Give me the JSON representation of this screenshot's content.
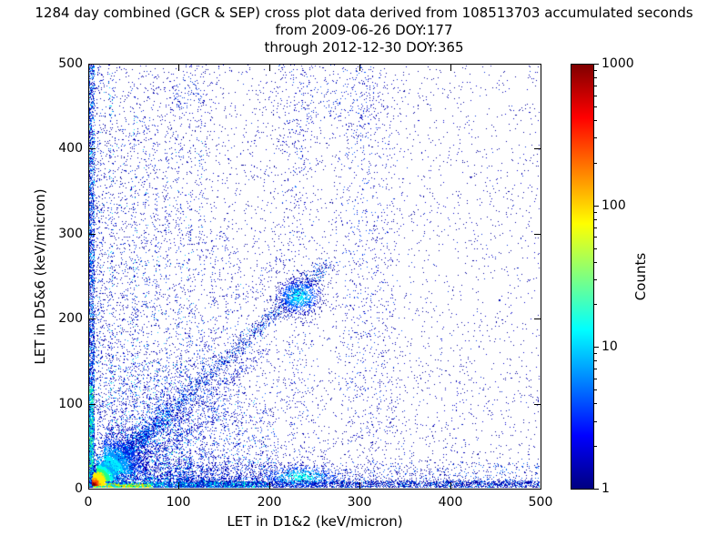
{
  "title": {
    "line1": "1284 day combined (GCR & SEP) cross plot data derived from 108513703 accumulated seconds",
    "line2": "from 2009-06-26 DOY:177",
    "line3": "through 2012-12-30 DOY:365"
  },
  "axes": {
    "x": {
      "label": "LET in D1&2 (keV/micron)",
      "min": 0,
      "max": 500,
      "ticks": [
        0,
        100,
        200,
        300,
        400,
        500
      ]
    },
    "y": {
      "label": "LET in D5&6 (keV/micron)",
      "min": 0,
      "max": 500,
      "ticks": [
        0,
        100,
        200,
        300,
        400,
        500
      ]
    }
  },
  "colorbar": {
    "label": "Counts",
    "scale": "log",
    "min": 1,
    "max": 1000,
    "ticks": [
      {
        "value": 1,
        "label": "1"
      },
      {
        "value": 10,
        "label": "10"
      },
      {
        "value": 100,
        "label": "100"
      },
      {
        "value": 1000,
        "label": "1000"
      }
    ],
    "colormap": "jet",
    "gradient_stops": [
      {
        "frac": 0.0,
        "color": "#000080"
      },
      {
        "frac": 0.125,
        "color": "#0000ff"
      },
      {
        "frac": 0.375,
        "color": "#00ffff"
      },
      {
        "frac": 0.625,
        "color": "#ffff00"
      },
      {
        "frac": 0.875,
        "color": "#ff0000"
      },
      {
        "frac": 1.0,
        "color": "#800000"
      }
    ]
  },
  "chart_data": {
    "type": "heatmap",
    "subtype": "2D histogram cross plot rendered as log-color density scatter",
    "title": "1284 day combined (GCR & SEP) cross plot data derived from 108513703 accumulated seconds from 2009-06-26 DOY:177 through 2012-12-30 DOY:365",
    "xlabel": "LET in D1&2 (keV/micron)",
    "ylabel": "LET in D5&6 (keV/micron)",
    "xlim": [
      0,
      500
    ],
    "ylim": [
      0,
      500
    ],
    "color_value": "Counts",
    "color_scale": "log",
    "color_range": [
      1,
      1000
    ],
    "grid": false,
    "legend": "colorbar right",
    "features": [
      "Intense hot spot (counts approaching 1000, red/orange/yellow) at the origin, below ~20 keV/micron in both detector pairs",
      "Dense correlated diagonal band y ~ x extending from the origin to about (260, 260)",
      "Secondary dense cluster centered near (230, 225) at the end of the diagonal band",
      "Dense low-LET band hugging the x-axis (y < ~10) across the full 0-500 range, warm-colored near the origin fading to blue",
      "Dense band hugging the y-axis (x < ~8) across the full 0-500 range",
      "Faint vertical striations at x ~ 25-170 and near x ~ 230, 300, 330 reaching toward the top of the plot",
      "Sparse single-count (dark blue) background scatter everywhere, density decreasing toward high LET in either detector"
    ],
    "density_regions": [
      {
        "type": "scatter",
        "xpow": 1.9,
        "ypow": 1.4,
        "n": 5200,
        "colors": [
          [
            "#000099",
            0.6
          ],
          [
            "#0000cc",
            0.3
          ],
          [
            "#0033dd",
            0.1
          ]
        ]
      },
      {
        "type": "scatter",
        "xpow": 1.0,
        "ypow": 1.0,
        "n": 1700,
        "colors": [
          [
            "#000099",
            0.8
          ],
          [
            "#0000cc",
            0.2
          ]
        ]
      },
      {
        "type": "streak",
        "x": 12,
        "ymax": 500,
        "spread": 3.0,
        "ypow": 1.6,
        "n": 330,
        "colors": [
          [
            "#0000bb",
            0.62
          ],
          [
            "#0044ee",
            0.28
          ],
          [
            "#00bbff",
            0.1
          ]
        ]
      },
      {
        "type": "streak",
        "x": 25,
        "ymax": 500,
        "spread": 2.6,
        "ypow": 2.0,
        "n": 450,
        "colors": [
          [
            "#0000bb",
            0.55
          ],
          [
            "#0044ee",
            0.28
          ],
          [
            "#00ddff",
            0.17
          ]
        ]
      },
      {
        "type": "streak",
        "x": 38,
        "ymax": 430,
        "spread": 2.4,
        "ypow": 2.2,
        "n": 280,
        "colors": [
          [
            "#0000bb",
            0.62
          ],
          [
            "#0044ee",
            0.28
          ],
          [
            "#00bbff",
            0.1
          ]
        ]
      },
      {
        "type": "streak",
        "x": 50,
        "ymax": 480,
        "spread": 2.6,
        "ypow": 2.0,
        "n": 400,
        "colors": [
          [
            "#0000bb",
            0.58
          ],
          [
            "#0044ee",
            0.28
          ],
          [
            "#00ddff",
            0.14
          ]
        ]
      },
      {
        "type": "streak",
        "x": 63,
        "ymax": 450,
        "spread": 2.4,
        "ypow": 2.2,
        "n": 300,
        "colors": [
          [
            "#0000bb",
            0.62
          ],
          [
            "#0044ee",
            0.28
          ],
          [
            "#00bbff",
            0.1
          ]
        ]
      },
      {
        "type": "streak",
        "x": 75,
        "ymax": 430,
        "spread": 2.4,
        "ypow": 2.2,
        "n": 320,
        "colors": [
          [
            "#0000bb",
            0.62
          ],
          [
            "#0044ee",
            0.28
          ],
          [
            "#00bbff",
            0.1
          ]
        ]
      },
      {
        "type": "streak",
        "x": 87,
        "ymax": 400,
        "spread": 2.4,
        "ypow": 2.2,
        "n": 280,
        "colors": [
          [
            "#0000bb",
            0.62
          ],
          [
            "#0044ee",
            0.28
          ],
          [
            "#00bbff",
            0.1
          ]
        ]
      },
      {
        "type": "streak",
        "x": 100,
        "ymax": 470,
        "spread": 2.6,
        "ypow": 2.0,
        "n": 300,
        "colors": [
          [
            "#0000bb",
            0.62
          ],
          [
            "#0044ee",
            0.28
          ],
          [
            "#00bbff",
            0.1
          ]
        ]
      },
      {
        "type": "streak",
        "x": 112,
        "ymax": 350,
        "spread": 2.4,
        "ypow": 2.2,
        "n": 220,
        "colors": [
          [
            "#0000bb",
            0.65
          ],
          [
            "#0044ee",
            0.25
          ],
          [
            "#00bbff",
            0.1
          ]
        ]
      },
      {
        "type": "streak",
        "x": 125,
        "ymax": 430,
        "spread": 2.4,
        "ypow": 2.2,
        "n": 260,
        "colors": [
          [
            "#0000bb",
            0.65
          ],
          [
            "#0044ee",
            0.25
          ],
          [
            "#00bbff",
            0.1
          ]
        ]
      },
      {
        "type": "streak",
        "x": 138,
        "ymax": 300,
        "spread": 2.4,
        "ypow": 2.2,
        "n": 200,
        "colors": [
          [
            "#0000bb",
            0.7
          ],
          [
            "#0044ee",
            0.22
          ],
          [
            "#00bbff",
            0.08
          ]
        ]
      },
      {
        "type": "streak",
        "x": 152,
        "ymax": 320,
        "spread": 2.4,
        "ypow": 2.2,
        "n": 180,
        "colors": [
          [
            "#0000bb",
            0.7
          ],
          [
            "#0044ee",
            0.22
          ],
          [
            "#00bbff",
            0.08
          ]
        ]
      },
      {
        "type": "streak",
        "x": 165,
        "ymax": 280,
        "spread": 2.4,
        "ypow": 2.2,
        "n": 150,
        "colors": [
          [
            "#0000bb",
            0.75
          ],
          [
            "#0044ee",
            0.2
          ],
          [
            "#00bbff",
            0.05
          ]
        ]
      },
      {
        "type": "streak",
        "x": 232,
        "ymax": 500,
        "spread": 10.0,
        "ypow": 1.0,
        "n": 380,
        "colors": [
          [
            "#0000bb",
            0.8
          ],
          [
            "#0066ff",
            0.2
          ]
        ]
      },
      {
        "type": "streak",
        "x": 302,
        "ymax": 500,
        "spread": 12.0,
        "ypow": 0.8,
        "n": 520,
        "colors": [
          [
            "#0000bb",
            0.7
          ],
          [
            "#0055ff",
            0.3
          ]
        ]
      },
      {
        "type": "streak",
        "x": 330,
        "ymax": 480,
        "spread": 8.0,
        "ypow": 1.0,
        "n": 200,
        "colors": [
          [
            "#0000bb",
            0.85
          ],
          [
            "#0055ff",
            0.15
          ]
        ]
      },
      {
        "type": "blob",
        "cx": 110,
        "cy": 465,
        "sx": 18,
        "sy": 25,
        "n": 170,
        "size": 1,
        "fold": false,
        "radial": [
          "#0033dd",
          "#0000bb",
          "#000099"
        ]
      },
      {
        "type": "blob",
        "cx": 270,
        "cy": 455,
        "sx": 40,
        "sy": 30,
        "n": 240,
        "size": 1,
        "fold": false,
        "radial": [
          "#0033dd",
          "#0000bb",
          "#000099"
        ]
      },
      {
        "type": "band",
        "x0": 0,
        "x1": 500,
        "y0": 5,
        "y1": 30,
        "xpow": 1.5,
        "ypow": 1.6,
        "n": 1800,
        "colors": [
          [
            "#0000aa",
            0.7
          ],
          [
            "#0066ff",
            0.3
          ]
        ]
      },
      {
        "type": "band",
        "x0": 100,
        "x1": 500,
        "y0": 0,
        "y1": 8,
        "xpow": 1.2,
        "ypow": 1.0,
        "n": 2300,
        "colors": [
          [
            "#0000aa",
            0.55
          ],
          [
            "#0033dd",
            0.3
          ],
          [
            "#00aaff",
            0.15
          ]
        ]
      },
      {
        "type": "band",
        "x0": 20,
        "x1": 200,
        "y0": 0,
        "y1": 7,
        "xpow": 1.4,
        "ypow": 1.0,
        "n": 1300,
        "colors": [
          [
            "#00ffcc",
            0.18
          ],
          [
            "#00aaff",
            0.32
          ],
          [
            "#0033dd",
            0.5
          ]
        ]
      },
      {
        "type": "band",
        "x0": 18,
        "x1": 115,
        "y0": 10,
        "y1": 150,
        "xpow": 1.0,
        "ypow": 2.0,
        "n": 1300,
        "colors": [
          [
            "#0000cc",
            0.5
          ],
          [
            "#0077ff",
            0.3
          ],
          [
            "#00eeff",
            0.15
          ],
          [
            "#55ff99",
            0.05
          ]
        ]
      },
      {
        "type": "band",
        "x0": 100,
        "x1": 210,
        "y0": 10,
        "y1": 120,
        "xpow": 1.0,
        "ypow": 2.0,
        "n": 800,
        "colors": [
          [
            "#0000bb",
            0.6
          ],
          [
            "#0055ff",
            0.3
          ],
          [
            "#00ccff",
            0.1
          ]
        ]
      },
      {
        "type": "band",
        "x0": 0,
        "x1": 6,
        "y0": 0,
        "y1": 500,
        "xpow": 1.0,
        "ypow": 1.8,
        "n": 2400,
        "colors": [
          [
            "#00ccff",
            0.2
          ],
          [
            "#0066ff",
            0.3
          ],
          [
            "#0000bb",
            0.5
          ]
        ]
      },
      {
        "type": "band",
        "x0": 0,
        "x1": 5,
        "y0": 0,
        "y1": 120,
        "xpow": 1.0,
        "ypow": 1.4,
        "n": 800,
        "colors": [
          [
            "#66ff66",
            0.2
          ],
          [
            "#00ffcc",
            0.4
          ],
          [
            "#00aaff",
            0.4
          ]
        ]
      },
      {
        "type": "diag",
        "len": 150,
        "spread": 4,
        "tpow": 1.1,
        "slope": 0.6,
        "n": 320,
        "colors": [
          [
            "#0055ff",
            0.2
          ],
          [
            "#0000bb",
            0.8
          ]
        ]
      },
      {
        "type": "diag",
        "len": 200,
        "spread": 5,
        "tpow": 1.1,
        "slope": 0.82,
        "n": 450,
        "colors": [
          [
            "#0055ff",
            0.25
          ],
          [
            "#0000bb",
            0.75
          ]
        ]
      },
      {
        "type": "diag",
        "len": 220,
        "spread": 6,
        "tpow": 1.0,
        "slope": 1.3,
        "n": 260,
        "colors": [
          [
            "#0055ff",
            0.2
          ],
          [
            "#0000bb",
            0.8
          ]
        ]
      },
      {
        "type": "diag",
        "len": 265,
        "spread": 5,
        "tpow": 1.0,
        "slope": 1.0,
        "n": 1700,
        "colors": [
          [
            "#00aaff",
            0.15
          ],
          [
            "#0044ee",
            0.35
          ],
          [
            "#0000aa",
            0.5
          ]
        ]
      },
      {
        "type": "diag",
        "len": 90,
        "spread": 7,
        "tpow": 1.4,
        "slope": 1.0,
        "n": 1500,
        "colors": [
          [
            "#00ccff",
            0.25
          ],
          [
            "#0066ff",
            0.35
          ],
          [
            "#0000cc",
            0.4
          ]
        ]
      },
      {
        "type": "band",
        "x0": 5,
        "x1": 70,
        "y0": 0,
        "y1": 5,
        "xpow": 1.6,
        "ypow": 1.3,
        "n": 900,
        "colors": [
          [
            "#ffcc00",
            0.28
          ],
          [
            "#aaff00",
            0.27
          ],
          [
            "#00ff88",
            0.22
          ],
          [
            "#00ccff",
            0.23
          ]
        ]
      },
      {
        "type": "blob",
        "cx": 235,
        "cy": 13,
        "sx": 22,
        "sy": 7,
        "n": 700,
        "size": 1,
        "fold": false,
        "radial": [
          "#00ffee",
          "#00aaff",
          "#0044ff",
          "#0000bb"
        ]
      },
      {
        "type": "blob",
        "cx": 233,
        "cy": 226,
        "sx": 13,
        "sy": 11,
        "n": 950,
        "size": 1,
        "fold": false,
        "radial": [
          "#00eeff",
          "#00aaff",
          "#0055ff",
          "#0000cc",
          "#000099"
        ]
      },
      {
        "type": "blob",
        "cx": 16,
        "cy": 16,
        "sx": 22,
        "sy": 22,
        "n": 2000,
        "size": 1,
        "fold": true,
        "radial": [
          "#00ff99",
          "#00eeff",
          "#0099ff",
          "#0033ee",
          "#0000bb"
        ]
      },
      {
        "type": "blob",
        "cx": 8,
        "cy": 8,
        "sx": 9,
        "sy": 9,
        "n": 2400,
        "size": 1,
        "fold": true,
        "radial": [
          "#ff9900",
          "#ffee00",
          "#99ff33",
          "#22ff88",
          "#00ffee",
          "#00aaff"
        ]
      },
      {
        "type": "blob",
        "cx": 4,
        "cy": 4,
        "sx": 4,
        "sy": 4,
        "n": 2600,
        "size": 2,
        "fold": true,
        "radial": [
          "#7f0000",
          "#cc1100",
          "#ff5500",
          "#ffaa00",
          "#ffee00"
        ]
      }
    ]
  }
}
